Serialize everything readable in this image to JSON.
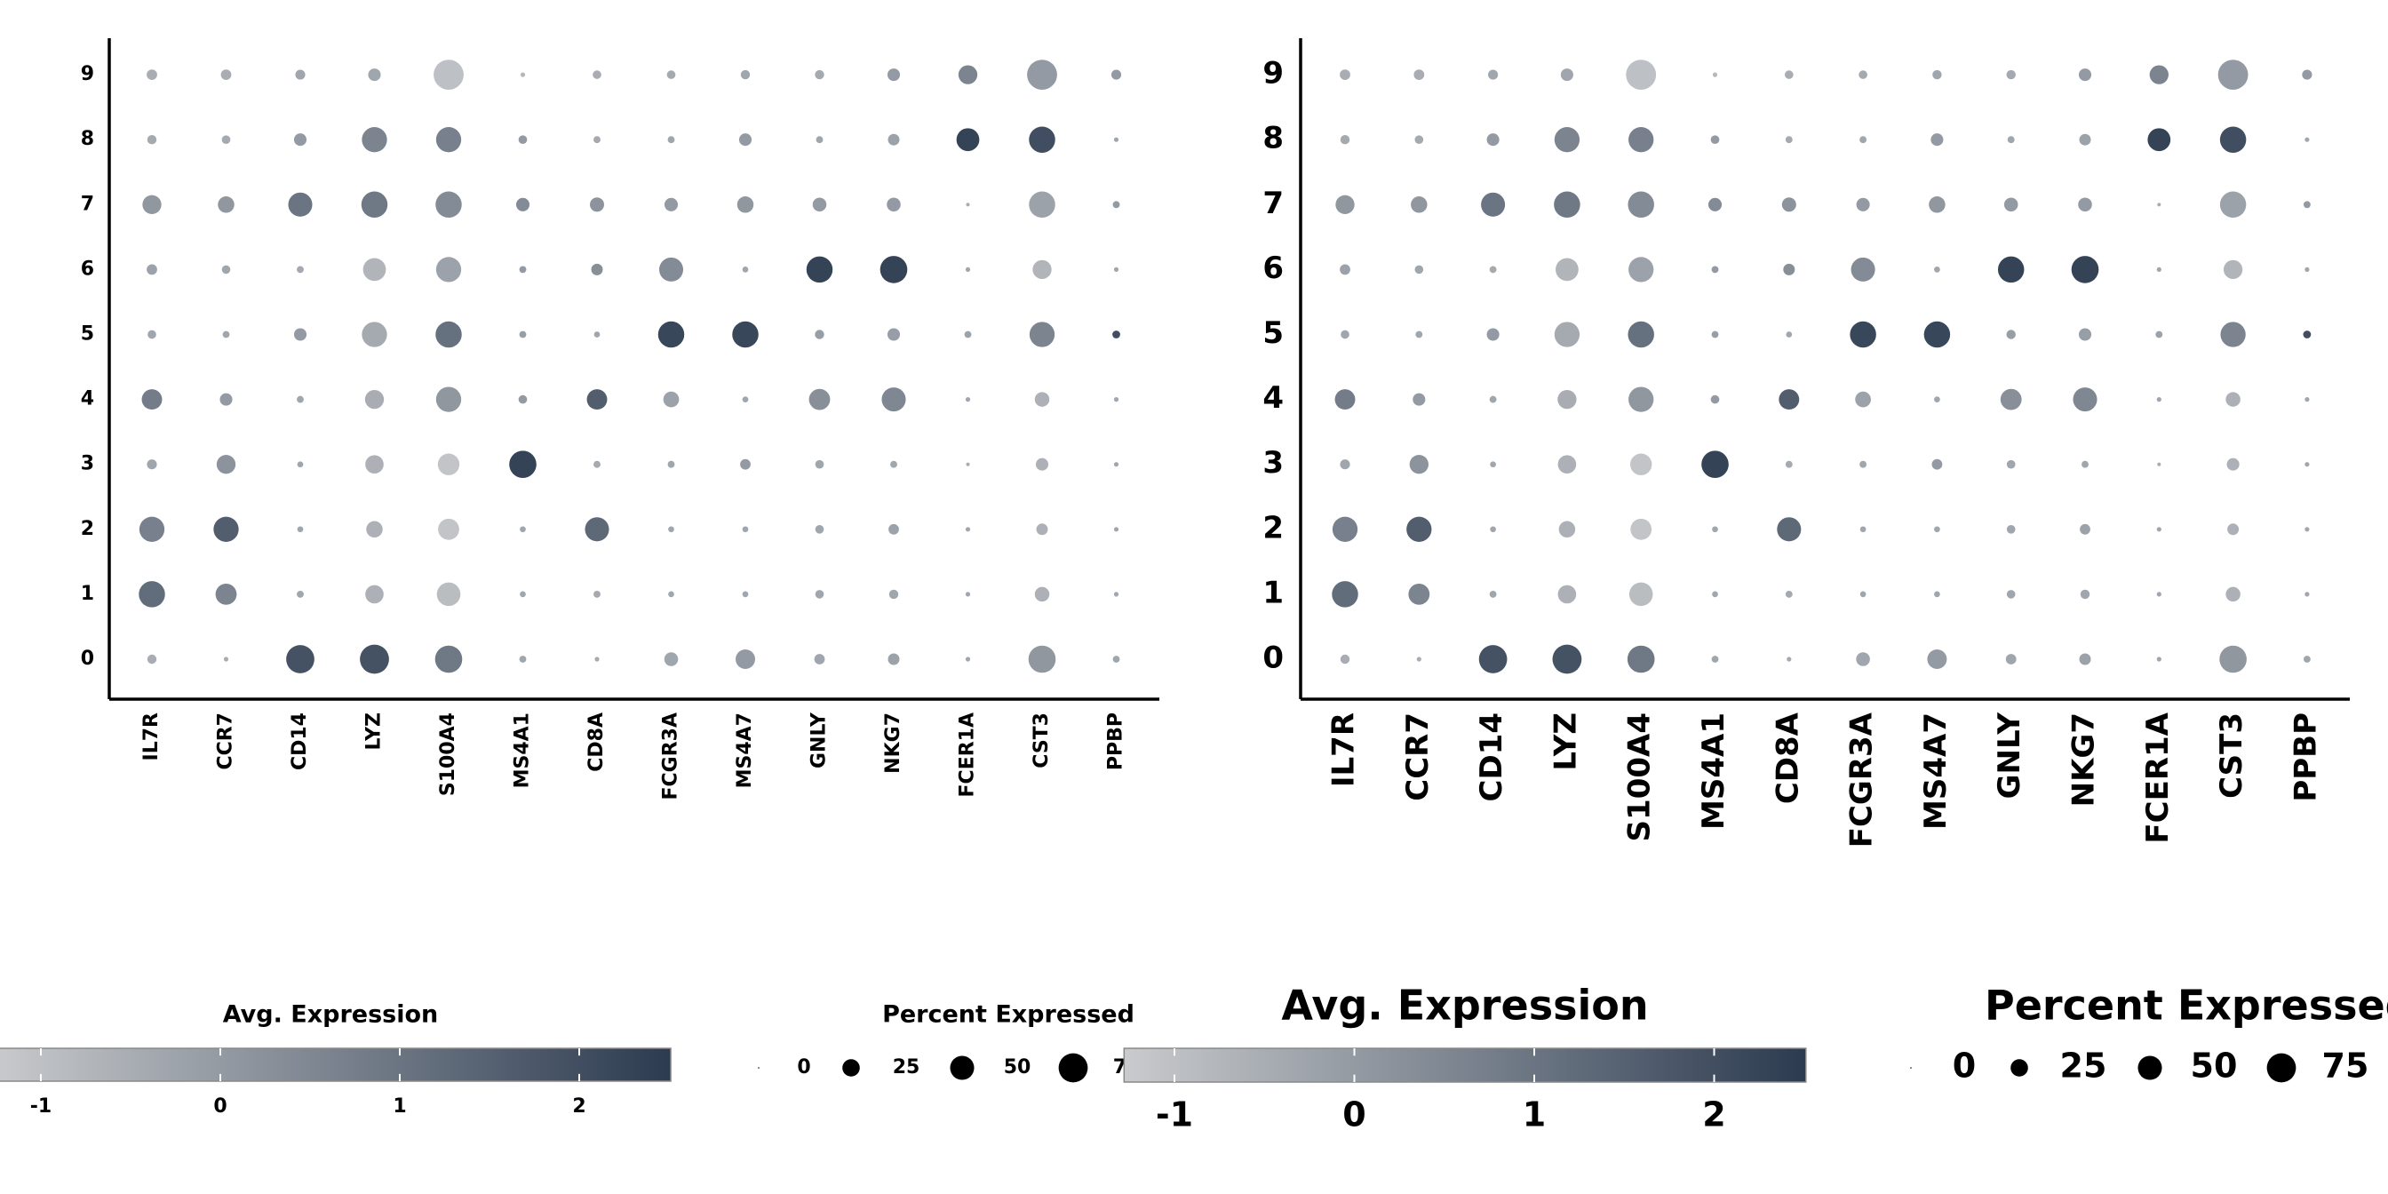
{
  "chart_data": {
    "type": "dotplot",
    "genes": [
      "IL7R",
      "CCR7",
      "CD14",
      "LYZ",
      "S100A4",
      "MS4A1",
      "CD8A",
      "FCGR3A",
      "MS4A7",
      "GNLY",
      "NKG7",
      "FCER1A",
      "CST3",
      "PPBP"
    ],
    "clusters": [
      "0",
      "1",
      "2",
      "3",
      "4",
      "5",
      "6",
      "7",
      "8",
      "9"
    ],
    "expression": [
      [
        -0.5,
        -0.5,
        1.9,
        1.9,
        0.9,
        -0.3,
        -0.4,
        -0.3,
        0,
        -0.3,
        -0.2,
        -0.3,
        0.1,
        -0.3
      ],
      [
        1.2,
        0.6,
        -0.3,
        -0.6,
        -0.9,
        -0.3,
        -0.4,
        -0.3,
        -0.3,
        -0.3,
        -0.3,
        -0.3,
        -0.6,
        -0.3
      ],
      [
        0.7,
        1.6,
        -0.3,
        -0.6,
        -1.1,
        -0.3,
        1.3,
        -0.3,
        -0.3,
        -0.3,
        -0.2,
        -0.3,
        -0.6,
        -0.3
      ],
      [
        -0.3,
        0.2,
        -0.3,
        -0.6,
        -1.1,
        2.3,
        -0.4,
        -0.3,
        0,
        -0.3,
        -0.3,
        -0.5,
        -0.6,
        -0.3
      ],
      [
        0.8,
        0,
        -0.3,
        -0.5,
        0.1,
        0,
        1.6,
        -0.2,
        -0.3,
        0.3,
        0.5,
        -0.3,
        -0.6,
        -0.3
      ],
      [
        -0.3,
        -0.3,
        0,
        -0.4,
        1.1,
        -0.1,
        -0.3,
        2.2,
        2.2,
        -0.1,
        -0.1,
        -0.2,
        0.6,
        2.0
      ],
      [
        -0.2,
        -0.3,
        -0.4,
        -0.7,
        -0.2,
        0,
        0.3,
        0.4,
        -0.3,
        2.3,
        2.3,
        -0.3,
        -0.7,
        -0.3
      ],
      [
        0.1,
        0.1,
        1.0,
        0.9,
        0.4,
        0.4,
        0.2,
        0,
        0.1,
        0,
        0,
        -0.5,
        -0.2,
        0
      ],
      [
        -0.4,
        -0.4,
        0,
        0.6,
        0.7,
        0,
        -0.4,
        -0.3,
        0,
        -0.3,
        -0.2,
        2.3,
        2.0,
        -0.3
      ],
      [
        -0.5,
        -0.5,
        -0.3,
        -0.3,
        -1.0,
        -0.8,
        -0.5,
        -0.4,
        -0.3,
        -0.4,
        0,
        0.6,
        0,
        0
      ]
    ],
    "percent": [
      [
        6,
        1,
        70,
        75,
        65,
        3,
        1,
        15,
        32,
        8,
        10,
        1,
        65,
        3
      ],
      [
        60,
        38,
        3,
        28,
        48,
        2,
        3,
        2,
        2,
        5,
        6,
        1,
        17,
        1
      ],
      [
        55,
        55,
        2,
        22,
        38,
        2,
        50,
        2,
        2,
        5,
        8,
        1,
        10,
        1
      ],
      [
        7,
        30,
        2,
        28,
        40,
        65,
        3,
        3,
        8,
        5,
        3,
        0.5,
        12,
        1
      ],
      [
        35,
        12,
        3,
        30,
        55,
        5,
        35,
        20,
        2,
        38,
        50,
        1,
        17,
        1
      ],
      [
        5,
        3,
        12,
        55,
        60,
        3,
        2,
        60,
        60,
        6,
        12,
        3,
        55,
        4
      ],
      [
        8,
        5,
        3,
        45,
        55,
        3,
        10,
        50,
        2,
        60,
        65,
        1,
        30,
        1
      ],
      [
        30,
        22,
        50,
        60,
        60,
        14,
        16,
        14,
        22,
        15,
        15,
        0.5,
        60,
        3
      ],
      [
        6,
        5,
        12,
        55,
        55,
        5,
        3,
        3,
        12,
        3,
        10,
        45,
        60,
        1
      ],
      [
        8,
        8,
        7,
        12,
        80,
        1,
        5,
        5,
        6,
        6,
        12,
        30,
        80,
        7
      ]
    ],
    "color_low": "#c9cbcd",
    "color_high": "#2c3b50",
    "color_title": "Avg. Expression",
    "colorlim": [
      -1.28,
      2.51
    ],
    "colorticks": [
      -1,
      0,
      1,
      2
    ],
    "size_title": "Percent Expressed",
    "sizelim": [
      0,
      100
    ],
    "sizeticks": [
      0,
      25,
      50,
      75
    ],
    "dot_color": "#000000"
  }
}
